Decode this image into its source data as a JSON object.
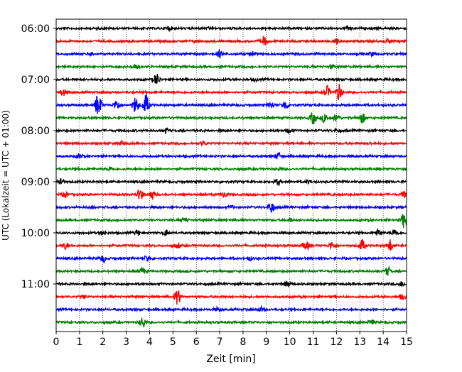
{
  "chart_data": {
    "type": "line",
    "subtype": "helicorder",
    "xlabel": "Zeit  [min]",
    "ylabel": "UTC (Lokalzeit = UTC + 01:00)",
    "x_ticks": [
      "0",
      "1",
      "2",
      "3",
      "4",
      "5",
      "6",
      "7",
      "8",
      "9",
      "10",
      "11",
      "12",
      "13",
      "14",
      "15"
    ],
    "xlim": [
      0,
      15
    ],
    "grid": "vertical dotted at each minute",
    "trace_colors": [
      "#000000",
      "#ff0000",
      "#0000ff",
      "#008000"
    ],
    "y_tick_labels": [
      "06:00",
      "07:00",
      "08:00",
      "09:00",
      "10:00",
      "11:00"
    ],
    "start_time": "06:00",
    "minutes_per_line": 15,
    "series": [
      {
        "start": "06:00",
        "events": [
          [
            4.8,
            0.3
          ],
          [
            12.5,
            0.3
          ],
          [
            6.6,
            0.18
          ]
        ]
      },
      {
        "start": "06:15",
        "events": [
          [
            8.9,
            0.8
          ],
          [
            12.0,
            0.55
          ],
          [
            14.2,
            0.4
          ],
          [
            6.0,
            0.2
          ]
        ]
      },
      {
        "start": "06:30",
        "events": [
          [
            1.5,
            0.3
          ],
          [
            7.0,
            0.55
          ],
          [
            8.4,
            0.4
          ],
          [
            13.5,
            0.3
          ]
        ]
      },
      {
        "start": "06:45",
        "events": [
          [
            3.4,
            0.45
          ],
          [
            11.8,
            0.25
          ]
        ]
      },
      {
        "start": "07:00",
        "events": [
          [
            4.3,
            1.0
          ],
          [
            8.5,
            0.2
          ]
        ]
      },
      {
        "start": "07:15",
        "events": [
          [
            0.3,
            0.5
          ],
          [
            11.6,
            1.0
          ],
          [
            12.1,
            1.4
          ]
        ]
      },
      {
        "start": "07:30",
        "events": [
          [
            1.8,
            2.2
          ],
          [
            2.6,
            0.9
          ],
          [
            3.4,
            1.4
          ],
          [
            3.85,
            1.8
          ],
          [
            9.2,
            0.5
          ],
          [
            9.8,
            0.8
          ]
        ]
      },
      {
        "start": "07:45",
        "events": [
          [
            11.0,
            1.1
          ],
          [
            11.5,
            0.8
          ],
          [
            12.0,
            0.7
          ],
          [
            13.1,
            0.9
          ]
        ]
      },
      {
        "start": "08:00",
        "events": [
          [
            4.7,
            0.4
          ],
          [
            10.0,
            0.35
          ],
          [
            12.0,
            0.2
          ]
        ]
      },
      {
        "start": "08:15",
        "events": [
          [
            2.8,
            0.4
          ],
          [
            6.3,
            0.3
          ],
          [
            13.5,
            0.2
          ]
        ]
      },
      {
        "start": "08:30",
        "events": [
          [
            1.0,
            0.35
          ],
          [
            9.5,
            0.6
          ]
        ]
      },
      {
        "start": "08:45",
        "events": [
          [
            2.3,
            0.3
          ],
          [
            9.6,
            0.25
          ]
        ]
      },
      {
        "start": "09:00",
        "events": [
          [
            0.2,
            0.7
          ],
          [
            9.5,
            0.5
          ],
          [
            10.8,
            0.3
          ]
        ]
      },
      {
        "start": "09:15",
        "events": [
          [
            0.4,
            0.5
          ],
          [
            3.6,
            1.0
          ],
          [
            4.1,
            0.8
          ],
          [
            7.2,
            0.4
          ],
          [
            14.9,
            0.5
          ]
        ]
      },
      {
        "start": "09:30",
        "events": [
          [
            9.2,
            1.0
          ],
          [
            1.5,
            0.2
          ],
          [
            7.5,
            0.2
          ]
        ]
      },
      {
        "start": "09:45",
        "events": [
          [
            5.5,
            0.4
          ],
          [
            10.0,
            0.3
          ],
          [
            14.9,
            1.4
          ]
        ]
      },
      {
        "start": "10:00",
        "events": [
          [
            3.5,
            0.5
          ],
          [
            4.7,
            0.5
          ],
          [
            13.8,
            0.6
          ],
          [
            14.5,
            0.6
          ],
          [
            2.0,
            0.3
          ]
        ]
      },
      {
        "start": "10:15",
        "events": [
          [
            0.4,
            0.6
          ],
          [
            5.2,
            0.4
          ],
          [
            10.7,
            0.8
          ],
          [
            11.8,
            0.6
          ],
          [
            13.1,
            1.0
          ],
          [
            14.3,
            1.0
          ]
        ]
      },
      {
        "start": "10:30",
        "events": [
          [
            2.0,
            0.6
          ],
          [
            3.9,
            0.5
          ],
          [
            8.3,
            0.3
          ]
        ]
      },
      {
        "start": "10:45",
        "events": [
          [
            3.7,
            0.5
          ],
          [
            14.2,
            0.7
          ]
        ]
      },
      {
        "start": "11:00",
        "events": [
          [
            9.9,
            0.5
          ],
          [
            14.8,
            0.4
          ]
        ]
      },
      {
        "start": "11:15",
        "events": [
          [
            5.2,
            1.3
          ],
          [
            1.2,
            0.2
          ],
          [
            14.8,
            0.4
          ]
        ]
      },
      {
        "start": "11:30",
        "events": [
          [
            6.9,
            0.3
          ],
          [
            8.8,
            0.4
          ]
        ]
      },
      {
        "start": "11:45",
        "events": [
          [
            3.7,
            0.9
          ],
          [
            13.5,
            0.4
          ]
        ]
      }
    ]
  }
}
